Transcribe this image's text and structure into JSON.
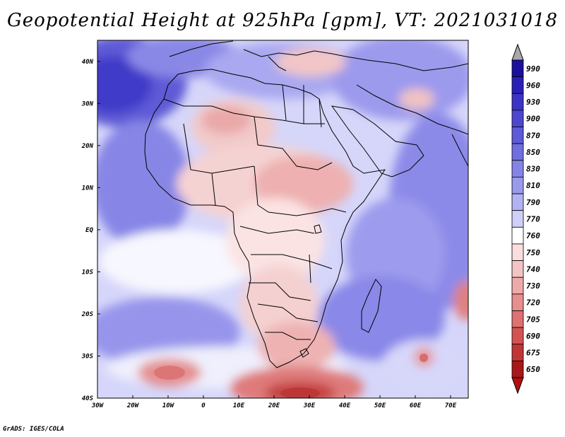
{
  "title": "Geopotential Height at 925hPa [gpm], VT: 2021031018",
  "credit": "GrADS: IGES/COLA",
  "map": {
    "lon_labels": [
      "30W",
      "20W",
      "10W",
      "0",
      "10E",
      "20E",
      "30E",
      "40E",
      "50E",
      "60E",
      "70E"
    ],
    "lat_labels": [
      "40N",
      "30N",
      "20N",
      "10N",
      "EQ",
      "10S",
      "20S",
      "30S",
      "40S"
    ],
    "lon_range": [
      -30,
      75
    ],
    "lat_range": [
      -40,
      45
    ]
  },
  "colorbar": {
    "labels": [
      "990",
      "960",
      "930",
      "900",
      "870",
      "850",
      "830",
      "810",
      "790",
      "770",
      "760",
      "750",
      "740",
      "730",
      "720",
      "705",
      "690",
      "675",
      "650"
    ],
    "colors": [
      "#1a0f9e",
      "#2a20b8",
      "#3b34c6",
      "#4d47cf",
      "#5e5bd8",
      "#706fe0",
      "#8484e7",
      "#9a9aed",
      "#b2b2f3",
      "#cfcff8",
      "#ffffff",
      "#fadede",
      "#f4c4c4",
      "#eeaaaa",
      "#e78e8e",
      "#df7171",
      "#d35353",
      "#c23535",
      "#a81818"
    ],
    "top_arrow_color": "#a8a8a8",
    "bottom_arrow_color": "#b01010"
  }
}
